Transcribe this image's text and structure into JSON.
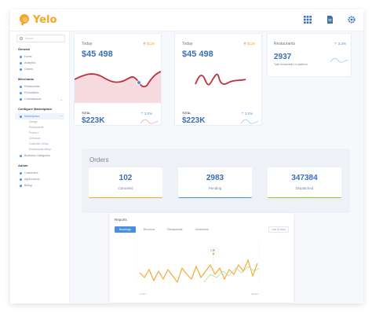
{
  "app": {
    "name": "Yelo",
    "brand_color": "#f5a623",
    "accent": "#4a90e2"
  },
  "topbar": {
    "icons": [
      "grid-icon",
      "document-icon",
      "gear-icon"
    ]
  },
  "sidebar": {
    "search_placeholder": "Search",
    "sections": [
      {
        "title": "General",
        "items": [
          {
            "label": "Home"
          },
          {
            "label": "Analytics"
          },
          {
            "label": "Orders"
          }
        ]
      },
      {
        "title": "Merchants",
        "items": [
          {
            "label": "Restaurants"
          },
          {
            "label": "Promotions"
          },
          {
            "label": "Commissions"
          }
        ]
      },
      {
        "title": "Configure Marketplace",
        "items": [
          {
            "label": "Marketplace"
          }
        ],
        "subitems": [
          "Design",
          "Restaurants",
          "Product",
          "Checkout",
          "Customer Setup",
          "Restaurants Setup"
        ],
        "after": [
          {
            "label": "Business Categories"
          }
        ]
      },
      {
        "title": "Admin",
        "items": [
          {
            "label": "Customers"
          },
          {
            "label": "Applications"
          },
          {
            "label": "Billing"
          }
        ]
      }
    ]
  },
  "cards": {
    "left": {
      "label": "Today",
      "badge": "$126",
      "value": "$45 498",
      "total_label": "TOTAL",
      "total_value": "$223K",
      "total_badge": "3.2%"
    },
    "middle": {
      "label": "Today",
      "badge": "$126",
      "value": "$45 498",
      "total_label": "TOTAL",
      "total_value": "$223K",
      "total_badge": "3.2%"
    },
    "right": {
      "label": "Restaurants",
      "badge": "3.2%",
      "value": "2937",
      "sub": "Total restaurants on platform"
    }
  },
  "orders": {
    "title": "Orders",
    "items": [
      {
        "value": "102",
        "label": "Canceled",
        "color": "#f5a623"
      },
      {
        "value": "2983",
        "label": "Pending",
        "color": "#4a90e2"
      },
      {
        "value": "347384",
        "label": "Dispatched",
        "color": "#7ed321"
      }
    ]
  },
  "reports": {
    "title": "Reports",
    "tabs": [
      "Bookings",
      "Revenue",
      "Restaurants",
      "Customers"
    ],
    "select": "Last 30 days",
    "tooltip": "1.2k",
    "x_labels": [
      "1 Nov",
      "30 Nov"
    ]
  }
}
